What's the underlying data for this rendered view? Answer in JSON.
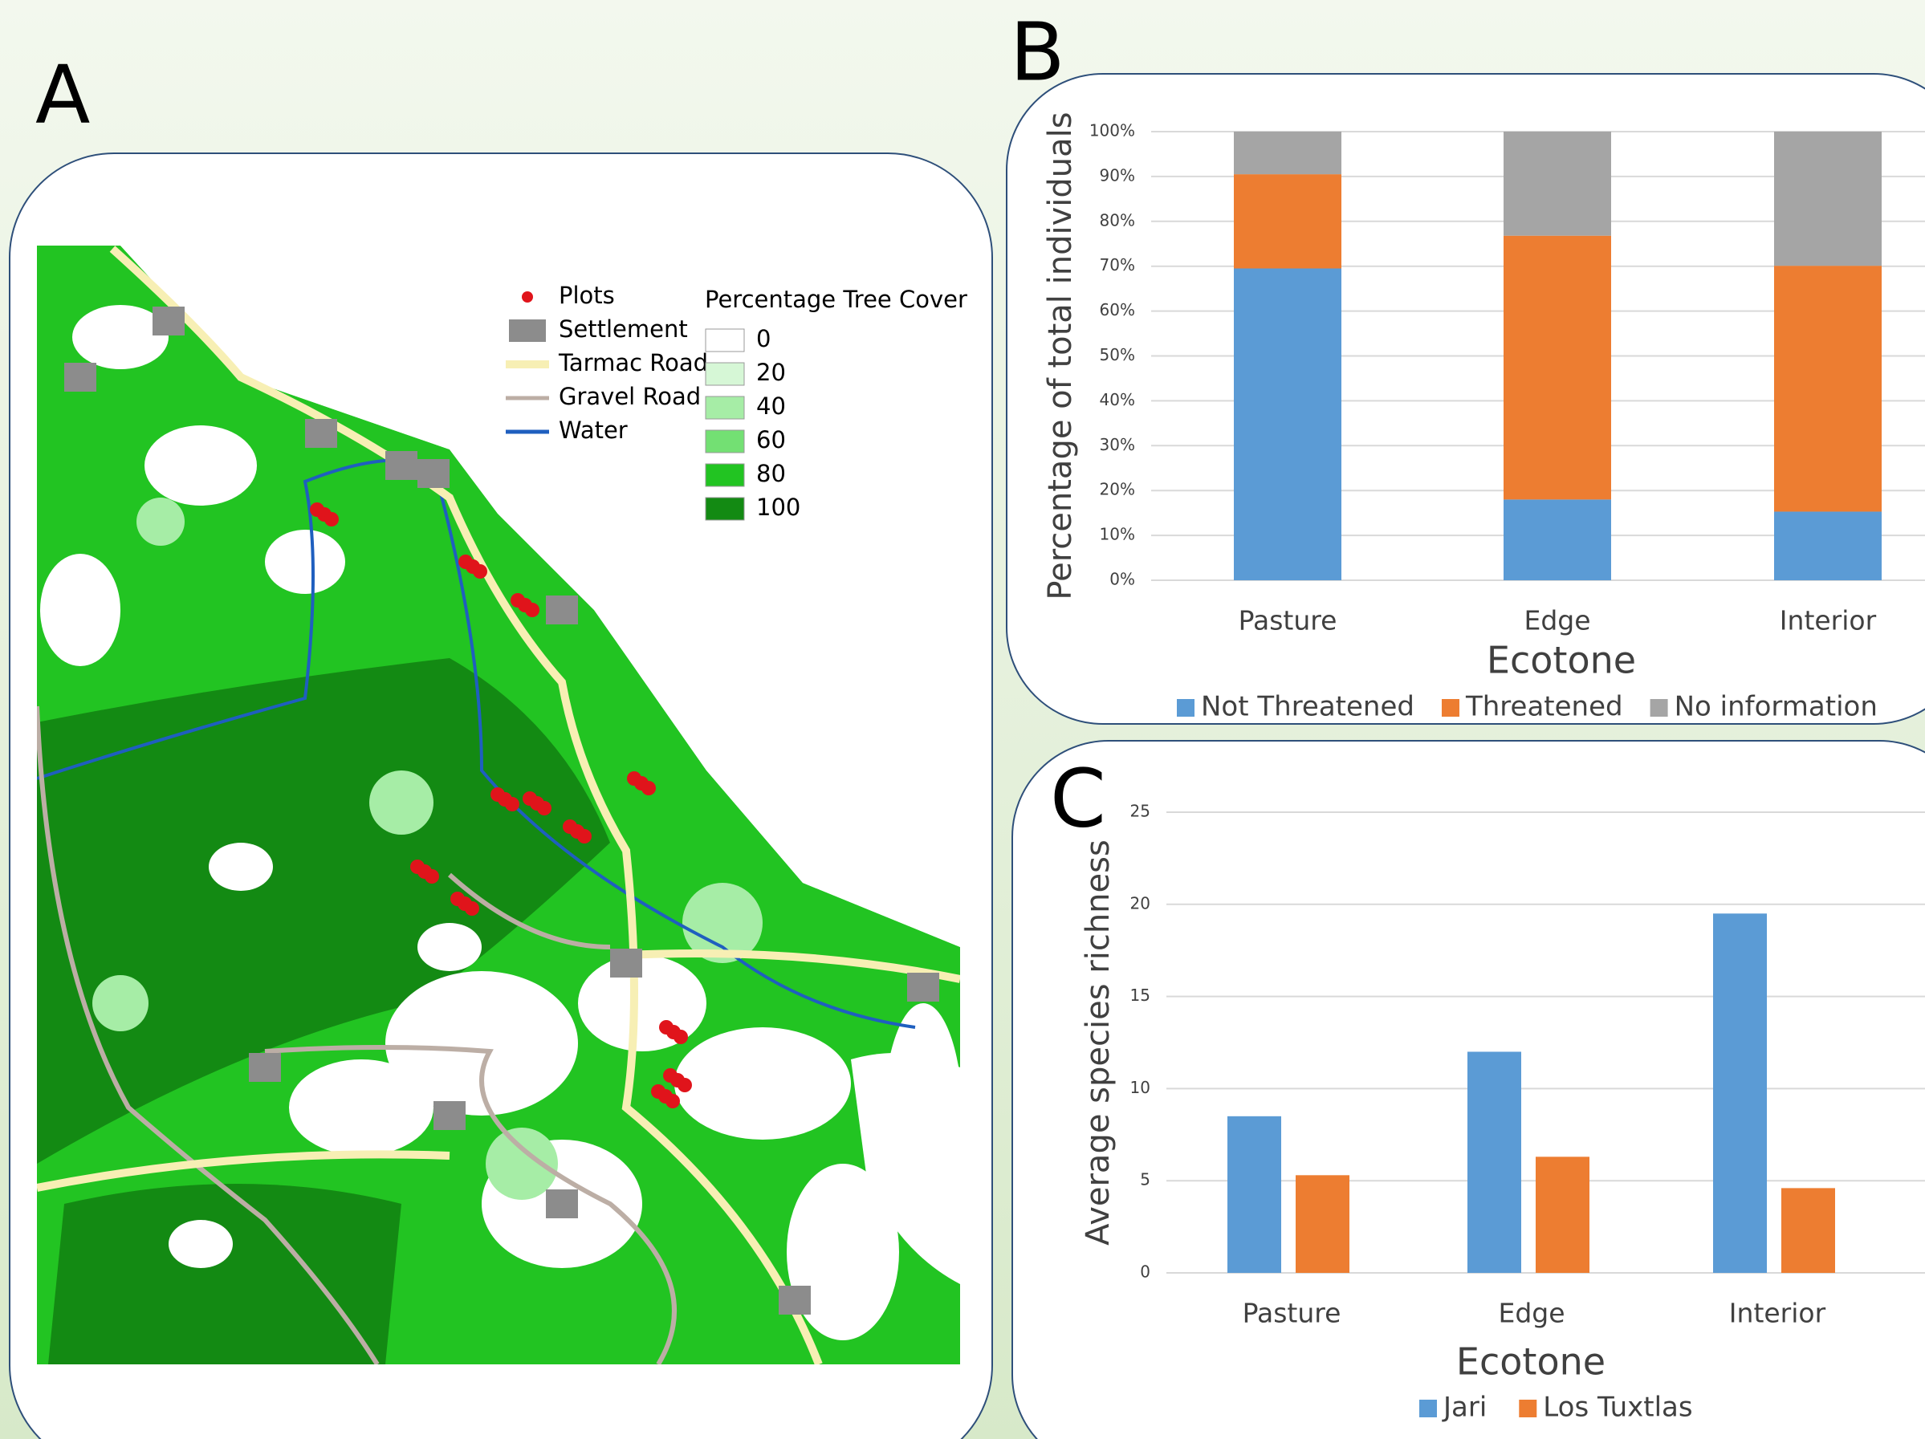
{
  "chart_data": [
    {
      "type": "map",
      "label": "A",
      "legend": [
        {
          "name": "Plots",
          "color": "#e0141b",
          "kind": "dot"
        },
        {
          "name": "Settlement",
          "color": "#8c8c8c",
          "kind": "area"
        },
        {
          "name": "Tarmac Road",
          "color": "#f7efb4",
          "kind": "line"
        },
        {
          "name": "Gravel Road",
          "color": "#bcaea5",
          "kind": "line"
        },
        {
          "name": "Water",
          "color": "#1f5fbf",
          "kind": "line"
        }
      ],
      "tree_cover": {
        "title": "Percentage Tree Cover",
        "levels": [
          0,
          20,
          40,
          60,
          80,
          100
        ],
        "colors": [
          "#ffffff",
          "#d6f7d6",
          "#a6eda6",
          "#73e073",
          "#22c422",
          "#138a13"
        ]
      }
    },
    {
      "type": "stacked_bar",
      "label": "B",
      "ylabel": "Percentage of total individuals",
      "xlabel": "Ecotone",
      "categories": [
        "Pasture",
        "Edge",
        "Interior"
      ],
      "series": [
        {
          "name": "Not Threatened",
          "color": "#5b9bd5",
          "values": [
            69.5,
            18,
            15.3
          ]
        },
        {
          "name": "Threatened",
          "color": "#ed7d31",
          "values": [
            21,
            58.8,
            54.8
          ]
        },
        {
          "name": "No information",
          "color": "#a5a5a5",
          "values": [
            9.5,
            23.2,
            29.9
          ]
        }
      ],
      "ylim": [
        0,
        100
      ],
      "yticks": [
        {
          "value": 0,
          "label": "0%"
        },
        {
          "value": 10,
          "label": "10%"
        },
        {
          "value": 20,
          "label": "20%"
        },
        {
          "value": 30,
          "label": "30%"
        },
        {
          "value": 40,
          "label": "40%"
        },
        {
          "value": 50,
          "label": "50%"
        },
        {
          "value": 60,
          "label": "60%"
        },
        {
          "value": 70,
          "label": "70%"
        },
        {
          "value": 80,
          "label": "80%"
        },
        {
          "value": 90,
          "label": "90%"
        },
        {
          "value": 100,
          "label": "100%"
        }
      ],
      "grid": true
    },
    {
      "type": "grouped_bar",
      "label": "C",
      "ylabel": "Average species richness",
      "xlabel": "Ecotone",
      "categories": [
        "Pasture",
        "Edge",
        "Interior"
      ],
      "series": [
        {
          "name": "Jari",
          "color": "#5b9bd5",
          "values": [
            8.5,
            12,
            19.5
          ]
        },
        {
          "name": "Los Tuxtlas",
          "color": "#ed7d31",
          "values": [
            5.3,
            6.3,
            4.6
          ]
        }
      ],
      "ylim": [
        0,
        25
      ],
      "yticks": [
        0,
        5,
        10,
        15,
        20,
        25
      ],
      "grid": true
    }
  ]
}
